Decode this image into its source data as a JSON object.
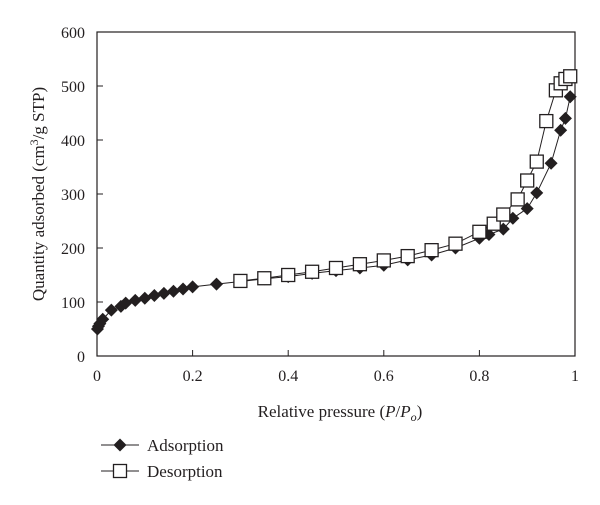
{
  "chart_data": {
    "type": "scatter",
    "xlabel": {
      "prefix": "Relative pressure (",
      "var1": "P",
      "slash": "/",
      "var2": "P",
      "sub": "o",
      "suffix": ")"
    },
    "ylabel": {
      "prefix": "Quantity adsorbed (cm",
      "sup": "3",
      "suffix": "/g STP)"
    },
    "xlim": [
      0,
      1
    ],
    "ylim": [
      0,
      600
    ],
    "xticks": [
      0,
      0.2,
      0.4,
      0.6,
      0.8,
      1
    ],
    "xtick_labels": [
      "0",
      "0.2",
      "0.4",
      "0.6",
      "0.8",
      "1"
    ],
    "yticks": [
      0,
      100,
      200,
      300,
      400,
      500,
      600
    ],
    "ytick_labels": [
      "0",
      "100",
      "200",
      "300",
      "400",
      "500",
      "600"
    ],
    "grid": false,
    "legend": "bottom-left, below plot",
    "series": [
      {
        "name": "Adsorption",
        "marker": "diamond-filled",
        "color": "#231f20",
        "x": [
          0.001,
          0.003,
          0.006,
          0.012,
          0.03,
          0.05,
          0.06,
          0.08,
          0.1,
          0.12,
          0.14,
          0.16,
          0.18,
          0.2,
          0.25,
          0.3,
          0.35,
          0.4,
          0.45,
          0.5,
          0.55,
          0.6,
          0.65,
          0.7,
          0.75,
          0.8,
          0.82,
          0.85,
          0.87,
          0.9,
          0.92,
          0.95,
          0.97,
          0.98,
          0.99
        ],
        "y": [
          50,
          55,
          60,
          68,
          85,
          92,
          98,
          103,
          107,
          112,
          116,
          120,
          124,
          128,
          133,
          138,
          143,
          147,
          153,
          158,
          163,
          168,
          178,
          187,
          200,
          218,
          225,
          235,
          255,
          273,
          302,
          357,
          418,
          440,
          480
        ]
      },
      {
        "name": "Desorption",
        "marker": "square-open",
        "color": "#231f20",
        "x": [
          0.3,
          0.35,
          0.4,
          0.45,
          0.5,
          0.55,
          0.6,
          0.65,
          0.7,
          0.75,
          0.8,
          0.83,
          0.85,
          0.88,
          0.9,
          0.92,
          0.94,
          0.96,
          0.97,
          0.98,
          0.99
        ],
        "y": [
          139,
          144,
          150,
          156,
          163,
          170,
          177,
          185,
          196,
          208,
          230,
          245,
          262,
          290,
          325,
          360,
          435,
          492,
          505,
          513,
          518
        ]
      }
    ]
  }
}
